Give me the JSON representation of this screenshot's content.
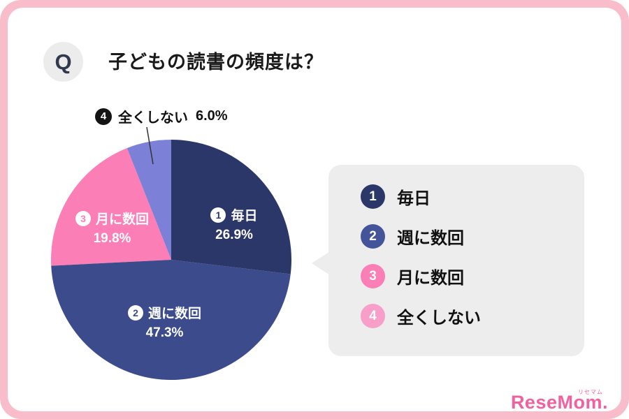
{
  "page": {
    "q_badge": "Q",
    "title": "子どもの読書の頻度は？"
  },
  "chart_data": {
    "type": "pie",
    "title": "子どもの読書の頻度は？",
    "unit": "%",
    "start_angle_deg": 0,
    "direction": "clockwise",
    "slices": [
      {
        "number": "1",
        "label": "毎日",
        "value": 26.9,
        "display": "26.9%",
        "color": "#2b3768"
      },
      {
        "number": "2",
        "label": "週に数回",
        "value": 47.3,
        "display": "47.3%",
        "color": "#3b4b8c"
      },
      {
        "number": "3",
        "label": "月に数回",
        "value": 19.8,
        "display": "19.8%",
        "color": "#fb7eb6"
      },
      {
        "number": "4",
        "label": "全くしない",
        "value": 6.0,
        "display": "6.0%",
        "color": "#7c80d6"
      }
    ]
  },
  "callout": {
    "number": "4",
    "label": "全くしない",
    "percent": "6.0%"
  },
  "legend": {
    "items": [
      {
        "number": "1",
        "label": "毎日",
        "color": "#2b3768"
      },
      {
        "number": "2",
        "label": "週に数回",
        "color": "#44549a"
      },
      {
        "number": "3",
        "label": "月に数回",
        "color": "#fb7eb6"
      },
      {
        "number": "4",
        "label": "全くしない",
        "color": "#f79fc8"
      }
    ]
  },
  "logo": {
    "text": "ReseMom",
    "dot": ".",
    "ruby": "リセマム",
    "color": "#f2619f"
  }
}
